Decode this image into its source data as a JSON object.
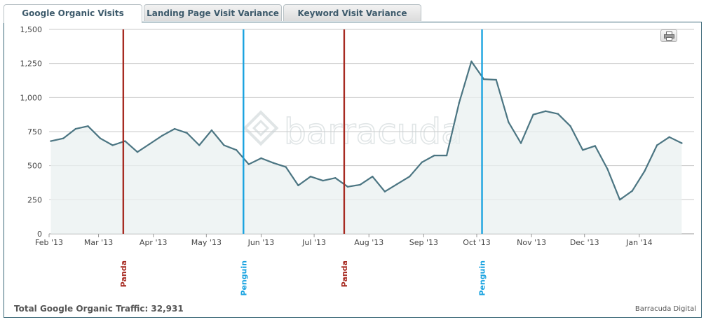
{
  "tabs": [
    {
      "label": "Google Organic Visits",
      "active": true
    },
    {
      "label": "Landing Page Visit Variance",
      "active": false
    },
    {
      "label": "Keyword Visit Variance",
      "active": false
    }
  ],
  "footer": {
    "total": "Total Google Organic Traffic: 32,931",
    "credit": "Barracuda Digital"
  },
  "watermark": "barracuda",
  "icons": {
    "print": "printer-icon"
  },
  "colors": {
    "line": "#4b7582",
    "area": "#eaf0f0",
    "panda": "#a72b22",
    "penguin": "#1aa3e0",
    "grid": "#c8c8c8",
    "axis_text": "#444444",
    "frame": "#3f6b7b"
  },
  "chart_data": {
    "type": "area",
    "ylim": [
      0,
      1500
    ],
    "yticks": [
      0,
      250,
      500,
      750,
      1000,
      1250,
      1500
    ],
    "ytick_labels": [
      "0",
      "250",
      "500",
      "750",
      "1,000",
      "1,250",
      "1,500"
    ],
    "x_start": "2013-02-01",
    "x_end": "2014-02-01",
    "xticks": [
      {
        "date": "2013-02-01",
        "label": "Feb '13"
      },
      {
        "date": "2013-03-01",
        "label": "Mar '13"
      },
      {
        "date": "2013-04-01",
        "label": "Apr '13"
      },
      {
        "date": "2013-05-01",
        "label": "May '13"
      },
      {
        "date": "2013-06-01",
        "label": "Jun '13"
      },
      {
        "date": "2013-07-01",
        "label": "Jul '13"
      },
      {
        "date": "2013-08-01",
        "label": "Aug '13"
      },
      {
        "date": "2013-09-01",
        "label": "Sep '13"
      },
      {
        "date": "2013-10-01",
        "label": "Oct '13"
      },
      {
        "date": "2013-11-01",
        "label": "Nov '13"
      },
      {
        "date": "2013-12-01",
        "label": "Dec '13"
      },
      {
        "date": "2014-01-01",
        "label": "Jan '14"
      }
    ],
    "series": [
      {
        "points": [
          [
            "2013-02-02",
            680
          ],
          [
            "2013-02-09",
            700
          ],
          [
            "2013-02-16",
            770
          ],
          [
            "2013-02-23",
            790
          ],
          [
            "2013-03-02",
            700
          ],
          [
            "2013-03-09",
            650
          ],
          [
            "2013-03-16",
            680
          ],
          [
            "2013-03-23",
            600
          ],
          [
            "2013-03-30",
            660
          ],
          [
            "2013-04-06",
            720
          ],
          [
            "2013-04-13",
            770
          ],
          [
            "2013-04-20",
            740
          ],
          [
            "2013-04-27",
            650
          ],
          [
            "2013-05-04",
            760
          ],
          [
            "2013-05-11",
            650
          ],
          [
            "2013-05-18",
            615
          ],
          [
            "2013-05-25",
            510
          ],
          [
            "2013-06-01",
            555
          ],
          [
            "2013-06-08",
            520
          ],
          [
            "2013-06-15",
            490
          ],
          [
            "2013-06-22",
            355
          ],
          [
            "2013-06-29",
            420
          ],
          [
            "2013-07-06",
            390
          ],
          [
            "2013-07-13",
            410
          ],
          [
            "2013-07-20",
            345
          ],
          [
            "2013-07-27",
            360
          ],
          [
            "2013-08-03",
            420
          ],
          [
            "2013-08-10",
            310
          ],
          [
            "2013-08-17",
            365
          ],
          [
            "2013-08-24",
            420
          ],
          [
            "2013-08-31",
            525
          ],
          [
            "2013-09-07",
            575
          ],
          [
            "2013-09-14",
            575
          ],
          [
            "2013-09-21",
            960
          ],
          [
            "2013-09-28",
            1265
          ],
          [
            "2013-10-05",
            1135
          ],
          [
            "2013-10-12",
            1130
          ],
          [
            "2013-10-19",
            820
          ],
          [
            "2013-10-26",
            665
          ],
          [
            "2013-11-02",
            875
          ],
          [
            "2013-11-09",
            900
          ],
          [
            "2013-11-16",
            880
          ],
          [
            "2013-11-23",
            790
          ],
          [
            "2013-11-30",
            615
          ],
          [
            "2013-12-07",
            645
          ],
          [
            "2013-12-14",
            475
          ],
          [
            "2013-12-21",
            250
          ],
          [
            "2013-12-28",
            315
          ],
          [
            "2014-01-04",
            460
          ],
          [
            "2014-01-11",
            650
          ],
          [
            "2014-01-18",
            710
          ],
          [
            "2014-01-25",
            665
          ]
        ]
      }
    ],
    "annotations": [
      {
        "label": "Panda",
        "date": "2013-03-15",
        "color": "#a72b22"
      },
      {
        "label": "Penguin",
        "date": "2013-05-22",
        "color": "#1aa3e0"
      },
      {
        "label": "Panda",
        "date": "2013-07-18",
        "color": "#a72b22"
      },
      {
        "label": "Penguin",
        "date": "2013-10-04",
        "color": "#1aa3e0"
      }
    ],
    "grid": true,
    "legend": "none"
  }
}
